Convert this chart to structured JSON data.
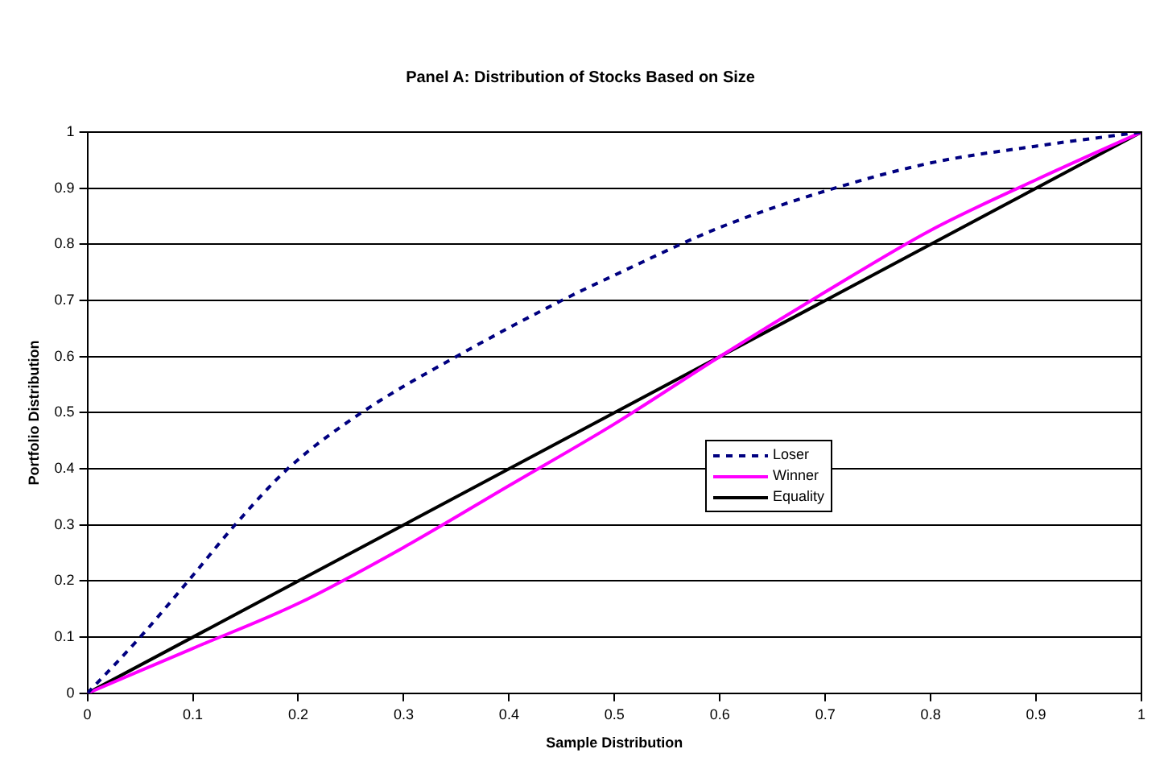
{
  "chart_data": {
    "type": "line",
    "title": "Panel A: Distribution of Stocks Based on Size",
    "xlabel": "Sample Distribution",
    "ylabel": "Portfolio Distribution",
    "xlim": [
      0,
      1
    ],
    "xticks": [
      0,
      0.1,
      0.2,
      0.3,
      0.4,
      0.5,
      0.6,
      0.7,
      0.8,
      0.9,
      1
    ],
    "ylim": [
      0,
      1
    ],
    "yticks": [
      0,
      0.1,
      0.2,
      0.3,
      0.4,
      0.5,
      0.6,
      0.7,
      0.8,
      0.9,
      1
    ],
    "grid": "y",
    "legend": "right",
    "marker": "none",
    "series": [
      {
        "name": "Loser",
        "color": "#000080",
        "line_style": "dotted",
        "x": [
          0,
          0.05,
          0.1,
          0.14,
          0.19,
          0.26,
          0.35,
          0.45,
          0.5,
          0.6,
          0.7,
          0.8,
          0.9,
          1
        ],
        "values": [
          0,
          0.1,
          0.21,
          0.3,
          0.4,
          0.5,
          0.6,
          0.7,
          0.745,
          0.83,
          0.895,
          0.945,
          0.975,
          1
        ]
      },
      {
        "name": "Winner",
        "color": "#ff00ff",
        "line_style": "solid",
        "x": [
          0,
          0.1,
          0.2,
          0.3,
          0.4,
          0.5,
          0.6,
          0.7,
          0.8,
          0.9,
          1
        ],
        "values": [
          0,
          0.08,
          0.16,
          0.26,
          0.37,
          0.48,
          0.6,
          0.715,
          0.825,
          0.915,
          1
        ]
      },
      {
        "name": "Equality",
        "color": "#000000",
        "line_style": "solid",
        "x": [
          0,
          1
        ],
        "values": [
          0,
          1
        ]
      }
    ]
  }
}
